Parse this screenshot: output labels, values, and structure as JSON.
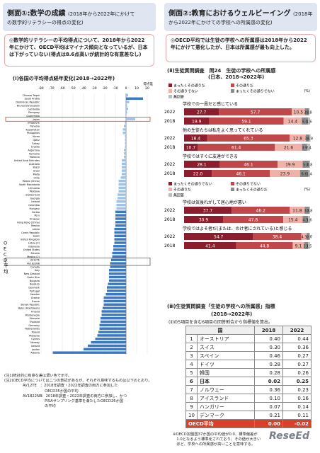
{
  "left": {
    "header": {
      "title": "側面①:数学の成績",
      "title_sub": "(2018年から2022年にかけて",
      "title_line2": "の数学的リテラシーの得点の変化)"
    },
    "note": "◎数学的リテラシーの平均得点について、2018年から2022年にかけて、OECD平均はマイナス傾向となっているが、日本は下がっていない(得点は8.6点高いが統計的な有意差なし)",
    "chart_title": "(ⅰ)各国の平均得点経年変化(2018→2022年)",
    "side_label": "OECD平均",
    "footnotes": [
      "(注1)統計的に有意な差は濃い色で示す。",
      "(注2)OECD平均については二つの表記があるが、それぞれ意味するものは以下のとおり。",
      "AV12TE　：2018年調査・2022年調査の両方に参加した",
      "　　　　　　OECD35か国の平均",
      "AV1822NB：2018年調査・2022年調査の両方に参加し、かつ",
      "　　　　　　PISAサンプリング基準を満たしたOECD26か国",
      "　　　　　　の平均"
    ]
  },
  "right": {
    "header": {
      "title": "側面②:教育におけるウェルビーイング",
      "title_sub": "(2018年",
      "title_line2": "から2022年にかけての学校への所属感の変化)"
    },
    "note": "◎OECD平均では生徒の学校への所属感は2018年から2022年にかけて悪化したが、日本は所属感が最も向上した。",
    "chart2_title": "(ⅱ)生徒質問調査　問24　生徒の学校への所属感",
    "chart2_subtitle": "(日本、2018→2022年)",
    "legend_pos": [
      "まったくその通りだ",
      "その通りだ",
      "その通りでない",
      "まったくその通りでない",
      "無回答"
    ],
    "legend_neg": [
      "まったくその通りでない",
      "その通りでない",
      "その通りだ",
      "まったくその通りだ",
      "無回答"
    ],
    "pct_label": "(%)",
    "table_title": "(ⅲ)生徒質問調査「生徒の学校への所属感」指標",
    "table_subtitle": "(2018→2022年)",
    "table_note": "(ⅱ)の5項目を含む6項目の回答割合から指標値を算出。",
    "table_headers": [
      "国",
      "2018",
      "2022"
    ],
    "table_rows": [
      {
        "rank": "1",
        "country": "オーストリア",
        "y2018": "0.40",
        "y2022": "0.44"
      },
      {
        "rank": "2",
        "country": "スイス",
        "y2018": "0.30",
        "y2022": "0.36"
      },
      {
        "rank": "3",
        "country": "スペイン",
        "y2018": "0.46",
        "y2022": "0.27"
      },
      {
        "rank": "4",
        "country": "ドイツ",
        "y2018": "0.28",
        "y2022": "0.27"
      },
      {
        "rank": "5",
        "country": "韓国",
        "y2018": "0.28",
        "y2022": "0.26"
      },
      {
        "rank": "6",
        "country": "日本",
        "y2018": "0.02",
        "y2022": "0.25"
      },
      {
        "rank": "7",
        "country": "ノルウェー",
        "y2018": "0.36",
        "y2022": "0.23"
      },
      {
        "rank": "8",
        "country": "アイスランド",
        "y2018": "0.10",
        "y2022": "0.16"
      },
      {
        "rank": "9",
        "country": "ハンガリー",
        "y2018": "0.07",
        "y2022": "0.14"
      },
      {
        "rank": "10",
        "country": "デンマーク",
        "y2018": "0.21",
        "y2022": "0.11"
      }
    ],
    "oecd_row": {
      "country": "OECD平均",
      "y2018": "0.00",
      "y2022": "-0.02"
    },
    "footnote": [
      "※OECD加盟国37か国の平均値が0.0、標準偏差が",
      "　1.0となるよう標準化されており、その値が大きい",
      "　ほど、学校への所属感が高いことを意味する。"
    ]
  },
  "watermark": "ReseEd",
  "chart_data": [
    {
      "type": "bar",
      "title": "(ⅰ)各国の平均得点経年変化(2018→2022年)",
      "ylabel": "得点差",
      "xlim": [
        -80,
        20
      ],
      "xticks": [
        -80,
        -70,
        -60,
        -50,
        -40,
        -30,
        -20,
        -10,
        0,
        10,
        20
      ],
      "highlight": [
        "Japan"
      ],
      "highlight_box": [
        "AV12TE",
        "AV1822NB"
      ],
      "categories": [
        "Chinese Taipei",
        "Saudi Arabia",
        "Dominican Republic",
        "Brunei Darussalam",
        "Cambodia",
        "Paraguay",
        "Guatemala",
        "Japan",
        "Singapore",
        "Panama",
        "Kazakhstan",
        "Philippines",
        "Korea",
        "Qatar",
        "Turkey",
        "Croatia",
        "Argentina",
        "Romania",
        "Morocco",
        "United Arab Emirates",
        "Australia",
        "Brazil",
        "Israel",
        "Malta",
        "Chile",
        "Macao (China)",
        "North Macedonia",
        "Lithuania",
        "Moldova",
        "Switzerland",
        "Georgia",
        "Ireland",
        "Colombia",
        "Hungary",
        "Serbia",
        "Peru",
        "Uruguay",
        "Hong Kong (China)",
        "Mexico",
        "Latvia",
        "Czech Republic",
        "Spain",
        "United Kingdom",
        "Latvia (2)",
        "Indonesia",
        "United States",
        "Estonia",
        "Mexico (2)",
        "AV12TE",
        "AV1822NB",
        "Canada",
        "Italy",
        "New Zealand",
        "Costa Rica",
        "Bulgaria",
        "Belgium",
        "Denmark",
        "Portugal",
        "Sweden",
        "Greece",
        "France",
        "Slovak Republic",
        "Baku (Azerbaijan)",
        "Finland",
        "Montenegro",
        "Slovenia",
        "Thailand",
        "Germany",
        "Netherlands",
        "Poland",
        "Malaysia",
        "Cyprus",
        "Norway",
        "Iceland",
        "Jordan",
        "Albania"
      ],
      "values": [
        2,
        16,
        3,
        1,
        2,
        1,
        0,
        8.6,
        -1,
        -2,
        -3,
        -3,
        -1,
        -1,
        -1,
        -1,
        -2,
        -2,
        -2,
        -4,
        -4,
        -4,
        -4,
        -4,
        -5,
        -7,
        -7,
        -7,
        -7,
        -8,
        -8,
        -9,
        -9,
        -9,
        -10,
        -10,
        -10,
        -10,
        -10,
        -11,
        -11,
        -11,
        -11,
        -11,
        -12,
        -12,
        -13,
        -13,
        -14,
        -15,
        -15,
        -16,
        -16,
        -16,
        -16,
        -17,
        -18,
        -18,
        -19,
        -21,
        -21,
        -21,
        -22,
        -23,
        -23,
        -24,
        -24,
        -25,
        -25,
        -26,
        -27,
        -29,
        -33,
        -36,
        -40,
        -69
      ]
    },
    {
      "type": "bar",
      "title": "(ⅱ)生徒質問調査　問24　生徒の学校への所属感",
      "stacked": true,
      "orientation": "horizontal",
      "xlim": [
        0,
        100
      ],
      "groups": [
        {
          "label": "学校での一員だと感じている",
          "legend": "pos",
          "rows": [
            {
              "year": "2022",
              "values": [
                27.7,
                57.7,
                10.5,
                3.0,
                0.8
              ]
            },
            {
              "year": "2018",
              "values": [
                19.9,
                59.1,
                14.4,
                5.0,
                1.6
              ]
            }
          ]
        },
        {
          "label": "他の生徒たちは私をよく思ってくれている",
          "legend": "pos",
          "rows": [
            {
              "year": "2022",
              "values": [
                18.4,
                65.3,
                12.8,
                3.0,
                0.9
              ]
            },
            {
              "year": "2018",
              "values": [
                10.7,
                61.4,
                21.6,
                3.9,
                2.4
              ]
            }
          ]
        },
        {
          "label": "学校ではすぐに友達ができる",
          "legend": "pos",
          "rows": [
            {
              "year": "2022",
              "values": [
                28.1,
                46.1,
                19.9,
                5.1,
                0.8
              ]
            },
            {
              "year": "2018",
              "values": [
                22.0,
                46.1,
                23.9,
                6.6,
                1.4
              ]
            }
          ]
        },
        {
          "label": "学校は気後れがして居心地が悪い",
          "legend": "neg",
          "rows": [
            {
              "year": "2022",
              "values": [
                37.7,
                46.2,
                11.8,
                3.5,
                0.8
              ]
            },
            {
              "year": "2018",
              "values": [
                30.9,
                47.8,
                15.4,
                4.3,
                1.6
              ]
            }
          ]
        },
        {
          "label": "学校ではよそ者だ(または、のけ者にされている)と感じる",
          "legend": "neg",
          "rows": [
            {
              "year": "2022",
              "values": [
                54.7,
                38.4,
                4.3,
                1.9,
                0.7
              ]
            },
            {
              "year": "2018",
              "values": [
                41.4,
                44.8,
                9.1,
                3.1,
                1.5
              ]
            }
          ]
        }
      ],
      "colors": [
        "#8c1d2c",
        "#c0474a",
        "#f0b2a8",
        "#8a8a8a",
        "#bdbdbd"
      ]
    }
  ]
}
